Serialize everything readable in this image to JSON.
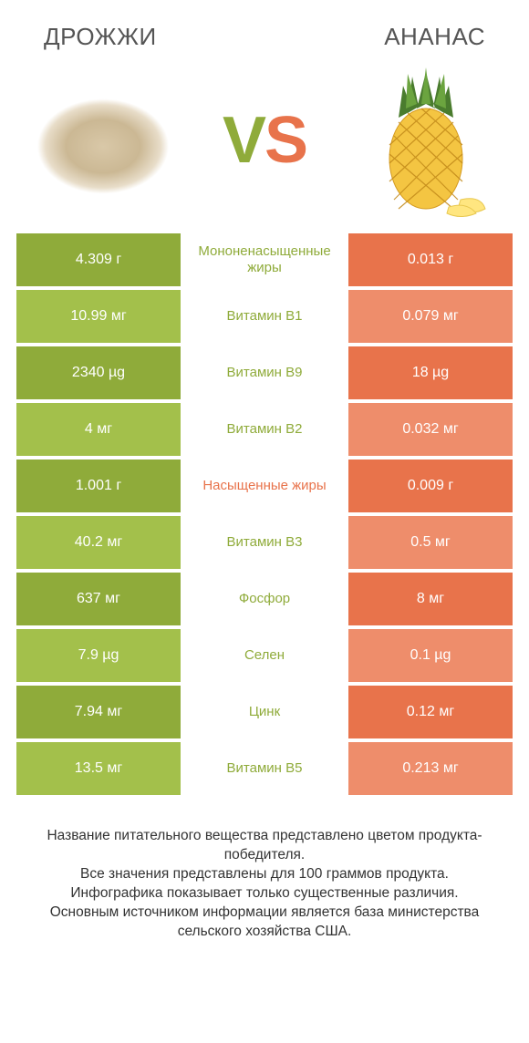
{
  "left_title": "ДРОЖЖИ",
  "right_title": "АНАНАС",
  "vs_v": "V",
  "vs_s": "S",
  "colors": {
    "left_dark": "#8fab3a",
    "left_light": "#a3c04b",
    "right_dark": "#e8734b",
    "right_light": "#ee8d6b",
    "mid_left": "#8fab3a",
    "mid_right": "#e8734b"
  },
  "rows": [
    {
      "left": "4.309 г",
      "mid": "Мононенасыщенные жиры",
      "right": "0.013 г",
      "winner": "left"
    },
    {
      "left": "10.99 мг",
      "mid": "Витамин B1",
      "right": "0.079 мг",
      "winner": "left"
    },
    {
      "left": "2340 µg",
      "mid": "Витамин B9",
      "right": "18 µg",
      "winner": "left"
    },
    {
      "left": "4 мг",
      "mid": "Витамин B2",
      "right": "0.032 мг",
      "winner": "left"
    },
    {
      "left": "1.001 г",
      "mid": "Насыщенные жиры",
      "right": "0.009 г",
      "winner": "right"
    },
    {
      "left": "40.2 мг",
      "mid": "Витамин B3",
      "right": "0.5 мг",
      "winner": "left"
    },
    {
      "left": "637 мг",
      "mid": "Фосфор",
      "right": "8 мг",
      "winner": "left"
    },
    {
      "left": "7.9 µg",
      "mid": "Селен",
      "right": "0.1 µg",
      "winner": "left"
    },
    {
      "left": "7.94 мг",
      "mid": "Цинк",
      "right": "0.12 мг",
      "winner": "left"
    },
    {
      "left": "13.5 мг",
      "mid": "Витамин B5",
      "right": "0.213 мг",
      "winner": "left"
    }
  ],
  "footer_lines": [
    "Название питательного вещества представлено цветом продукта-победителя.",
    "Все значения представлены для 100 граммов продукта.",
    "Инфографика показывает только существенные различия.",
    "Основным источником информации является база министерства сельского хозяйства США."
  ]
}
